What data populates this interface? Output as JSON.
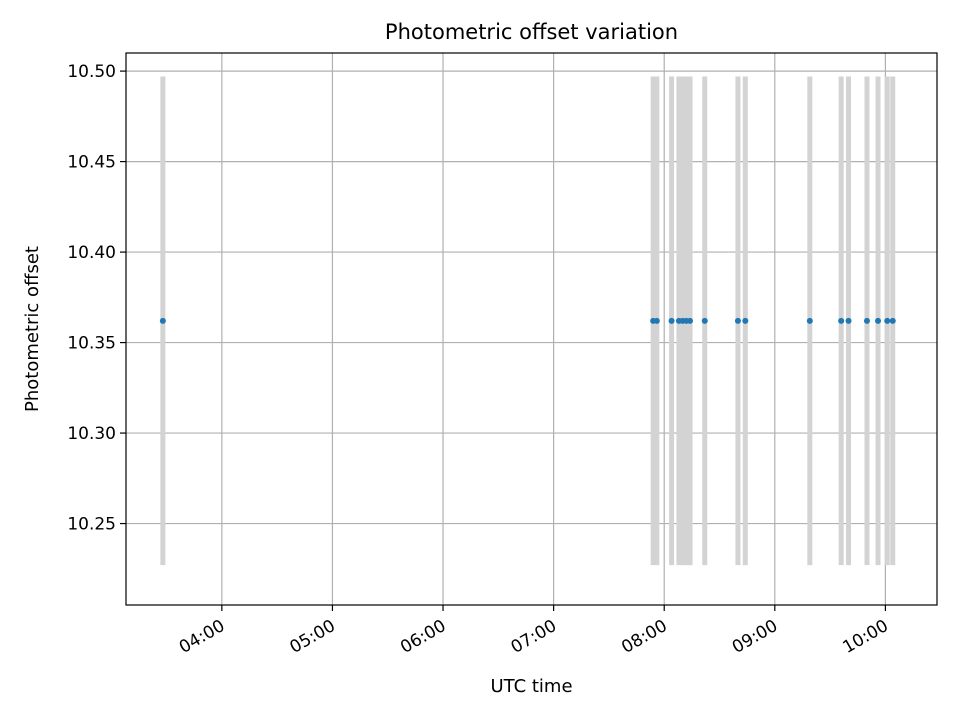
{
  "chart_data": {
    "type": "scatter",
    "title": "Photometric offset variation",
    "xlabel": "UTC time",
    "ylabel": "Photometric offset",
    "x_ticks": [
      "04:00",
      "05:00",
      "06:00",
      "07:00",
      "08:00",
      "09:00",
      "10:00"
    ],
    "y_ticks": [
      "10.25",
      "10.30",
      "10.35",
      "10.40",
      "10.45",
      "10.50"
    ],
    "xlim": [
      "03:08",
      "10:28"
    ],
    "ylim": [
      10.205,
      10.51
    ],
    "grid": true,
    "point_color": "#1f77b4",
    "errorbar_color": "#d3d3d3",
    "series": [
      {
        "x": [
          "03:28",
          "07:54",
          "07:56",
          "08:04",
          "08:08",
          "08:10",
          "08:12",
          "08:14",
          "08:22",
          "08:40",
          "08:44",
          "09:19",
          "09:36",
          "09:40",
          "09:50",
          "09:56",
          "10:01",
          "10:04"
        ],
        "y": [
          10.362,
          10.362,
          10.362,
          10.362,
          10.362,
          10.362,
          10.362,
          10.362,
          10.362,
          10.362,
          10.362,
          10.362,
          10.362,
          10.362,
          10.362,
          10.362,
          10.362,
          10.362
        ],
        "yerr_low": [
          10.227,
          10.227,
          10.227,
          10.227,
          10.227,
          10.227,
          10.227,
          10.227,
          10.227,
          10.227,
          10.227,
          10.227,
          10.227,
          10.227,
          10.227,
          10.227,
          10.227,
          10.227
        ],
        "yerr_high": [
          10.497,
          10.497,
          10.497,
          10.497,
          10.497,
          10.497,
          10.497,
          10.497,
          10.497,
          10.497,
          10.497,
          10.497,
          10.497,
          10.497,
          10.497,
          10.497,
          10.497,
          10.497
        ]
      }
    ]
  }
}
